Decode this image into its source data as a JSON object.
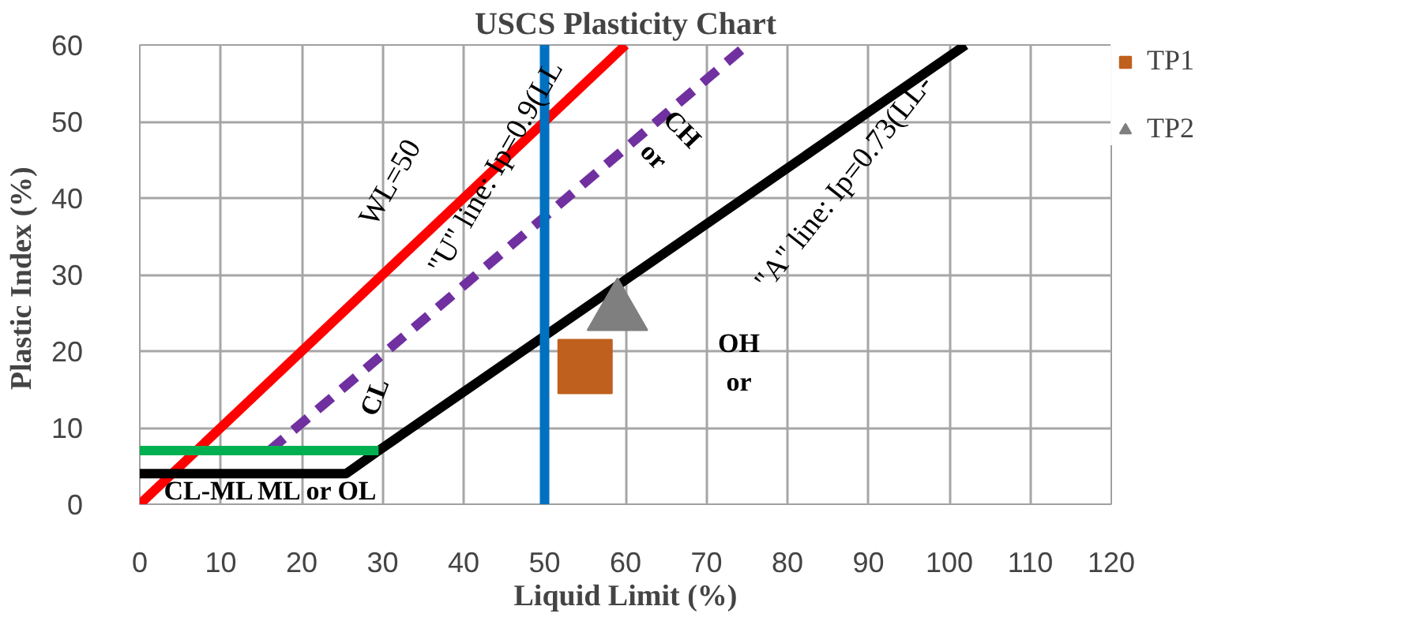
{
  "chart_data": {
    "type": "line",
    "title": "USCS Plasticity Chart",
    "xlabel": "Liquid Limit (%)",
    "ylabel": "Plastic Index  (%)",
    "xlim": [
      0,
      120
    ],
    "xticks": [
      0,
      10,
      20,
      30,
      40,
      50,
      60,
      70,
      80,
      90,
      100,
      110,
      120
    ],
    "ylim": [
      0,
      60
    ],
    "yticks": [
      0,
      10,
      20,
      30,
      40,
      50,
      60
    ],
    "grid": true,
    "legend": "right",
    "series": [
      {
        "color": "#ff0000",
        "x": [
          0,
          60
        ],
        "values": [
          0,
          60
        ],
        "line_style": "solid"
      },
      {
        "color": "#7030a0",
        "x": [
          16,
          75
        ],
        "values": [
          7,
          60
        ],
        "line_style": "dashed"
      },
      {
        "color": "#000000",
        "x": [
          0,
          25.5,
          29.5,
          102
        ],
        "values": [
          4,
          4,
          7,
          60
        ],
        "line_style": "solid"
      },
      {
        "color": "#00b050",
        "x": [
          0,
          29.5
        ],
        "values": [
          7,
          7
        ],
        "line_style": "solid"
      },
      {
        "color": "#0070c0",
        "x": [
          50,
          50
        ],
        "values": [
          0,
          60
        ],
        "line_style": "solid"
      },
      {
        "type": "scatter",
        "name": "TP1",
        "color": "#c0601f",
        "x": [
          55
        ],
        "values": [
          18
        ],
        "marker": "square"
      },
      {
        "type": "scatter",
        "name": "TP2",
        "color": "#7f7f7f",
        "x": [
          59
        ],
        "values": [
          25
        ],
        "marker": "triangle"
      }
    ],
    "annotations": [
      "WL=50",
      "\"U\" line: Ip=0.9(LL",
      "CH",
      "or",
      "\"A\" line: Ip=0.73(LL-",
      "OH",
      "or",
      "CL",
      "CL-ML",
      "ML or OL"
    ]
  }
}
